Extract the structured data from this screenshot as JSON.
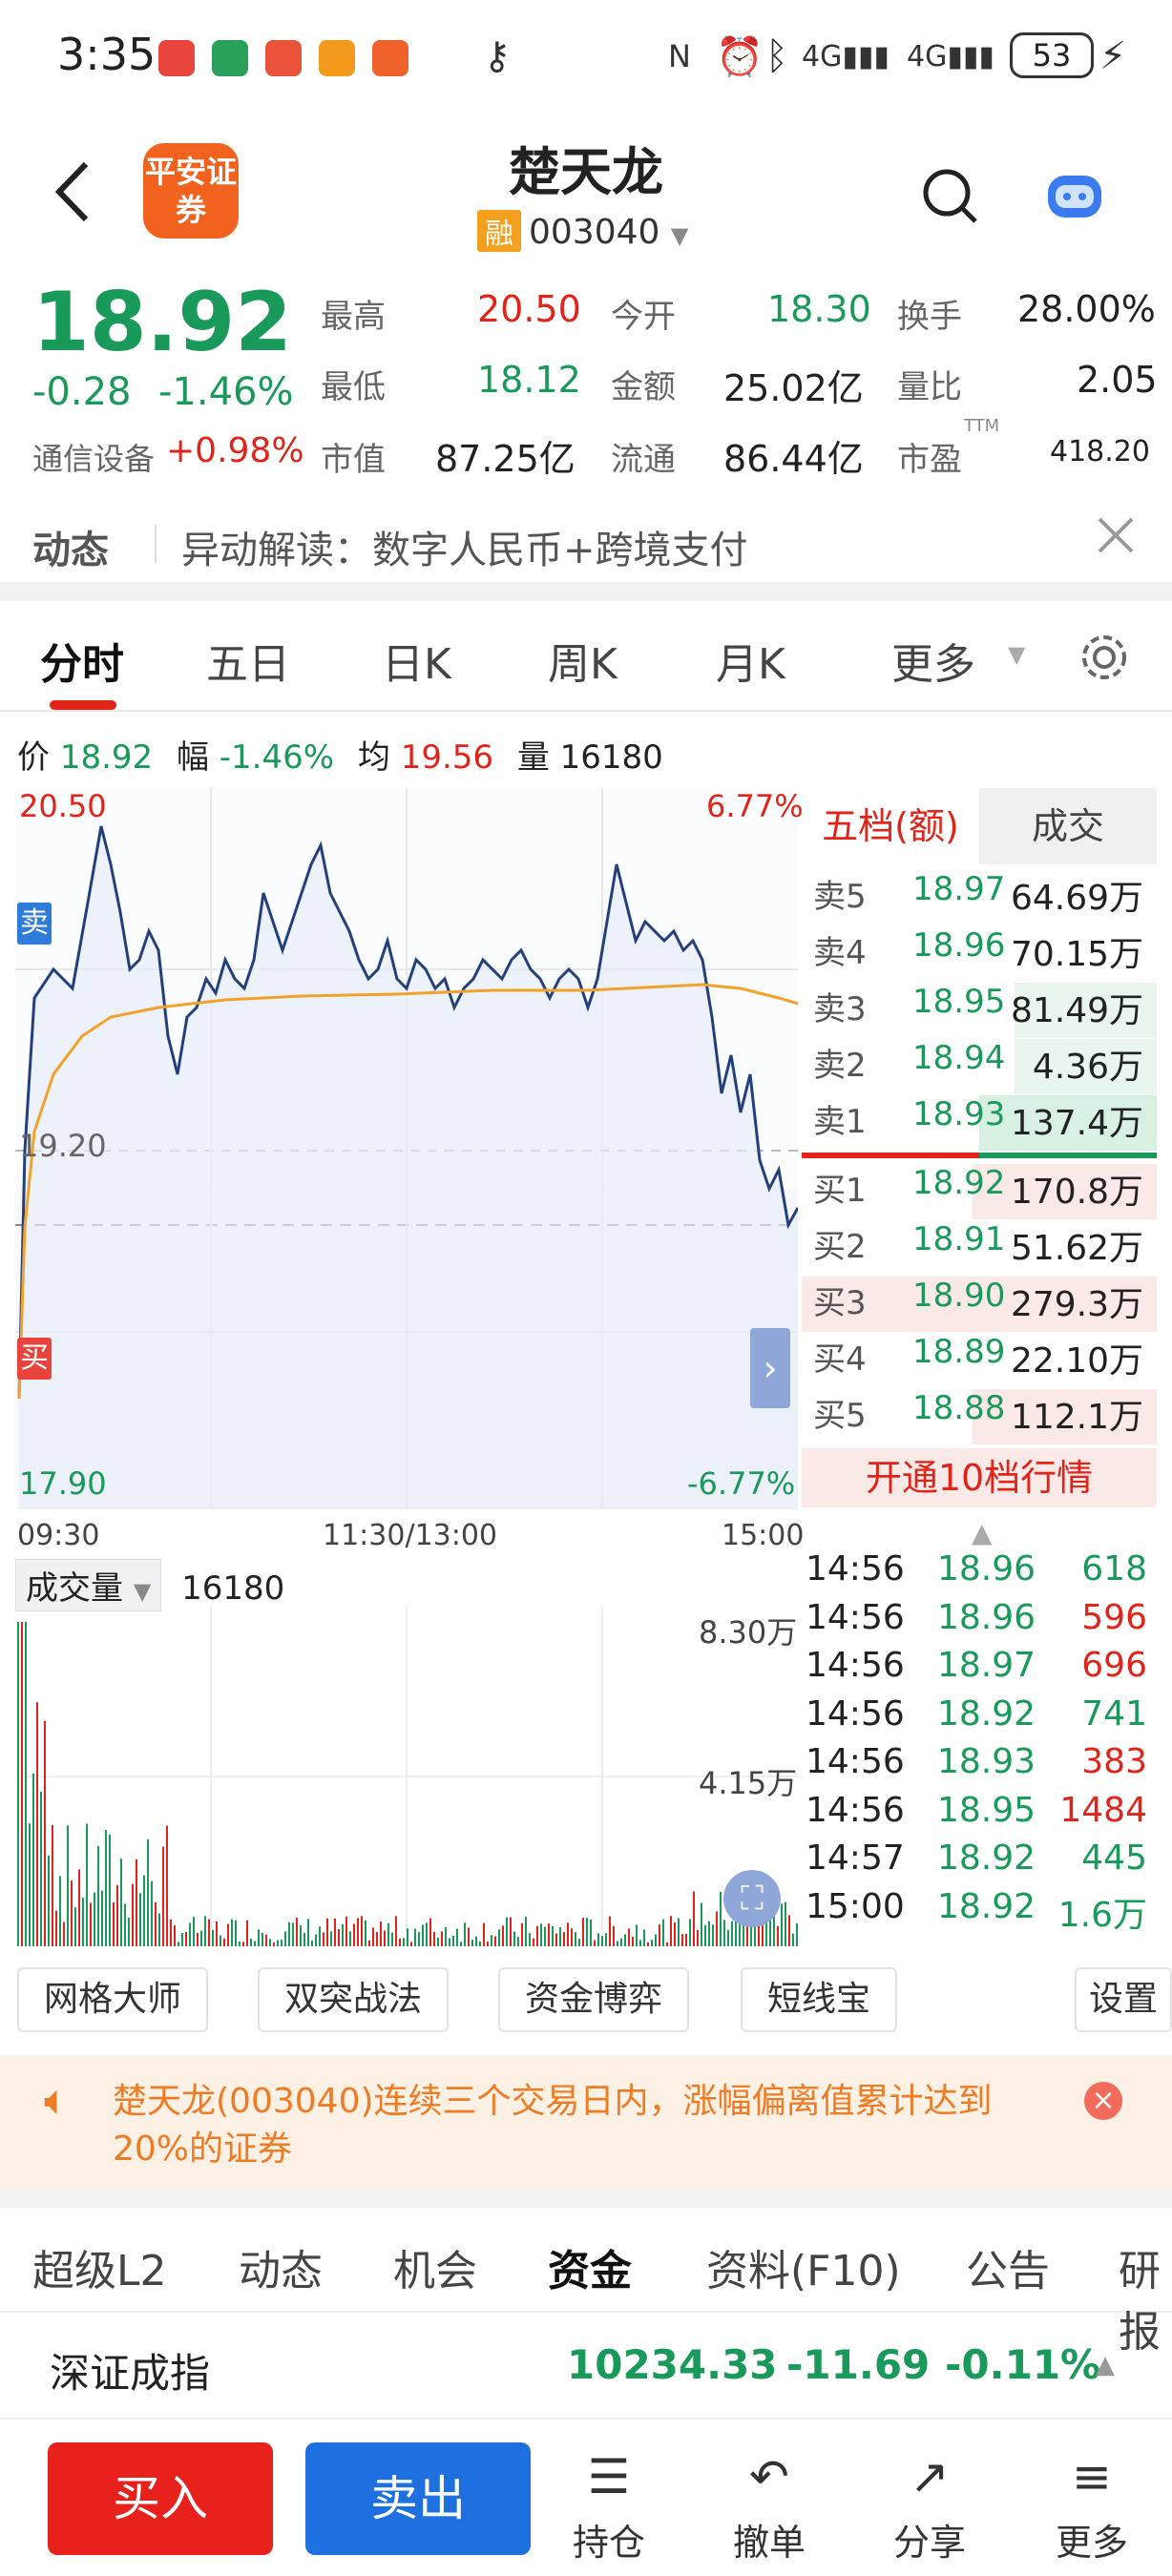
{
  "status": {
    "time": "3:35",
    "battery": "53"
  },
  "header": {
    "back_icon": "back-arrow-icon",
    "logo_text": "平安证券",
    "name": "楚天龙",
    "rong": "融",
    "code": "003040"
  },
  "quote": {
    "price": "18.92",
    "change": "-0.28",
    "pct": "-1.46%",
    "sector": "通信设备",
    "sector_pct": "+0.98%",
    "high_l": "最高",
    "high": "20.50",
    "open_l": "今开",
    "open": "18.30",
    "turn_l": "换手",
    "turn": "28.00%",
    "low_l": "最低",
    "low": "18.12",
    "amt_l": "金额",
    "amt": "25.02亿",
    "vr_l": "量比",
    "vr": "2.05",
    "mcap_l": "市值",
    "mcap": "87.25亿",
    "float_l": "流通",
    "float": "86.44亿",
    "pe_l": "市盈",
    "pe_sup": "TTM",
    "pe": "418.20"
  },
  "news": {
    "label": "动态",
    "text": "异动解读：数字人民币+跨境支付"
  },
  "ktabs": [
    "分时",
    "五日",
    "日K",
    "周K",
    "月K",
    "更多"
  ],
  "info": {
    "p_l": "价",
    "p": "18.92",
    "f_l": "幅",
    "f": "-1.46%",
    "avg_l": "均",
    "avg": "19.56",
    "v_l": "量",
    "v": "16180"
  },
  "chart_axis": {
    "top": "20.50",
    "top_pct": "6.77%",
    "mid": "19.20",
    "bottom": "17.90",
    "bottom_pct": "-6.77%",
    "sell_marker": "卖",
    "buy_marker": "买"
  },
  "time_axis": [
    "09:30",
    "11:30/13:00",
    "15:00"
  ],
  "book": {
    "tab1": "五档(额)",
    "tab2": "成交",
    "asks": [
      {
        "l": "卖5",
        "p": "18.97",
        "v": "64.69万"
      },
      {
        "l": "卖4",
        "p": "18.96",
        "v": "70.15万"
      },
      {
        "l": "卖3",
        "p": "18.95",
        "v": "81.49万"
      },
      {
        "l": "卖2",
        "p": "18.94",
        "v": "4.36万"
      },
      {
        "l": "卖1",
        "p": "18.93",
        "v": "137.4万"
      }
    ],
    "bids": [
      {
        "l": "买1",
        "p": "18.92",
        "v": "170.8万"
      },
      {
        "l": "买2",
        "p": "18.91",
        "v": "51.62万"
      },
      {
        "l": "买3",
        "p": "18.90",
        "v": "279.3万"
      },
      {
        "l": "买4",
        "p": "18.89",
        "v": "22.10万"
      },
      {
        "l": "买5",
        "p": "18.88",
        "v": "112.1万"
      }
    ],
    "open_btn": "开通10档行情"
  },
  "vol": {
    "label": "成交量",
    "value": "16180",
    "max": "8.30万",
    "mid": "4.15万"
  },
  "trades": [
    {
      "t": "14:56",
      "p": "18.96",
      "v": "618",
      "c": "green"
    },
    {
      "t": "14:56",
      "p": "18.96",
      "v": "596",
      "c": "red"
    },
    {
      "t": "14:56",
      "p": "18.97",
      "v": "696",
      "c": "red"
    },
    {
      "t": "14:56",
      "p": "18.92",
      "v": "741",
      "c": "green"
    },
    {
      "t": "14:56",
      "p": "18.93",
      "v": "383",
      "c": "red"
    },
    {
      "t": "14:56",
      "p": "18.95",
      "v": "1484",
      "c": "red"
    },
    {
      "t": "14:57",
      "p": "18.92",
      "v": "445",
      "c": "green"
    },
    {
      "t": "15:00",
      "p": "18.92",
      "v": "1.6万",
      "c": "green"
    }
  ],
  "tools": [
    "网格大师",
    "双突战法",
    "资金博弈",
    "短线宝",
    "设置"
  ],
  "warning": "楚天龙(003040)连续三个交易日内，涨幅偏离值累计达到20%的证券",
  "ftabs": [
    "超级L2",
    "动态",
    "机会",
    "资金",
    "资料(F10)",
    "公告",
    "研报"
  ],
  "index": {
    "name": "深证成指",
    "value": "10234.33",
    "change": "-11.69",
    "pct": "-0.11%"
  },
  "bottom": {
    "buy": "买入",
    "sell": "卖出",
    "nav": [
      "持仓",
      "撤单",
      "分享",
      "更多"
    ]
  },
  "colors": {
    "up": "#e2231a",
    "down": "#1a9a5a",
    "line": "#24407c",
    "avg": "#f2a12a",
    "buy": "#e8211c",
    "sell": "#1e70e0"
  }
}
